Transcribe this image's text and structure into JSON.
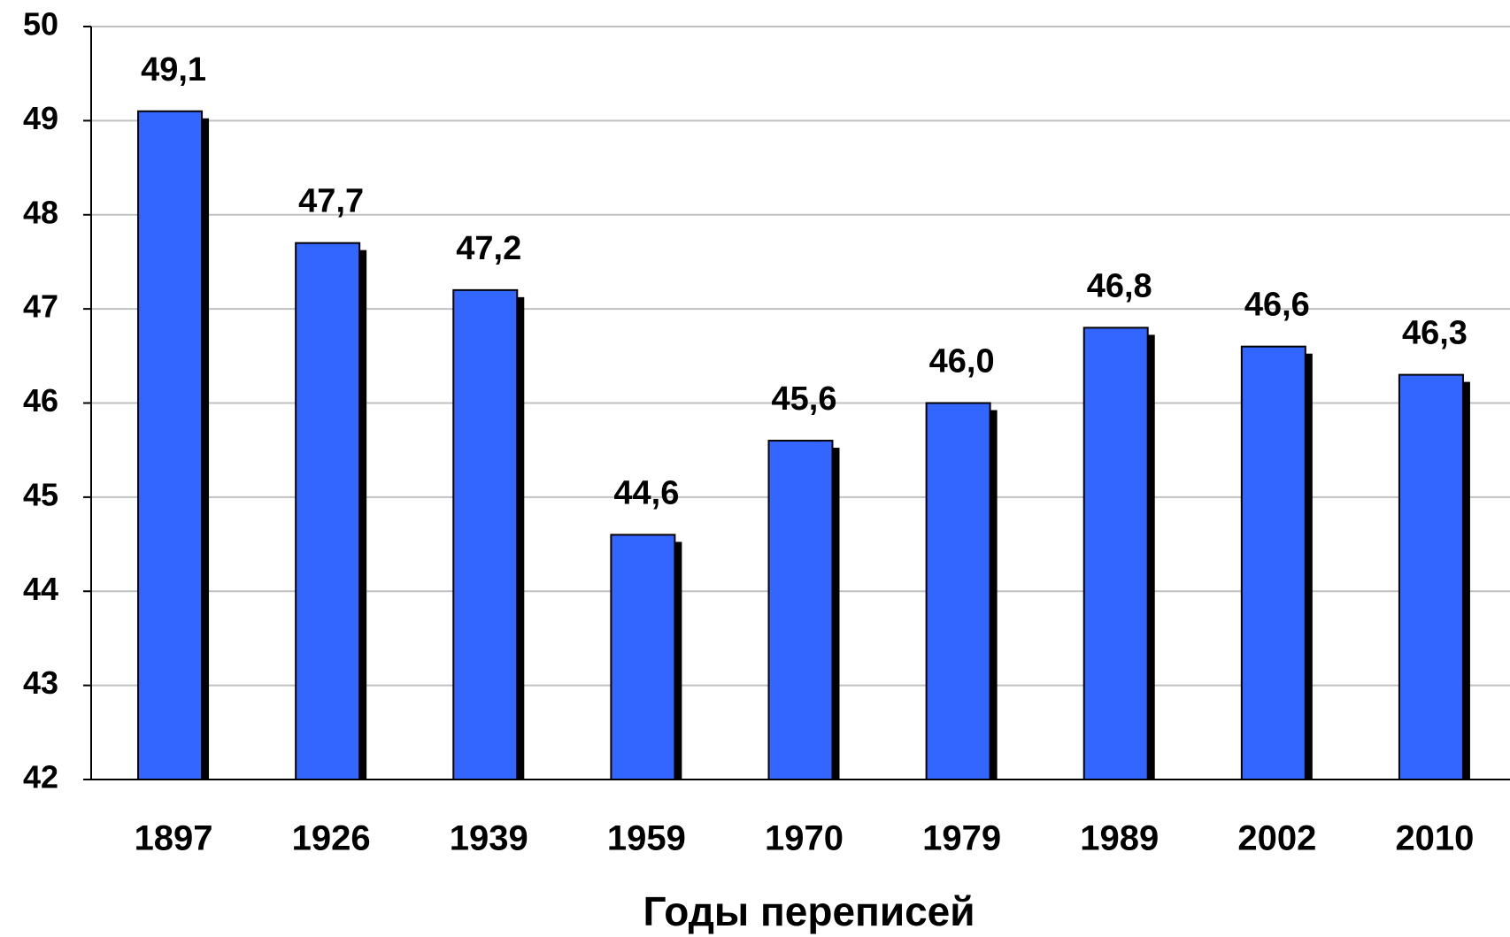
{
  "chart_data": {
    "type": "bar",
    "xlabel": "Годы переписей",
    "categories": [
      "1897",
      "1926",
      "1939",
      "1959",
      "1970",
      "1979",
      "1989",
      "2002",
      "2010"
    ],
    "values": [
      49.1,
      47.7,
      47.2,
      44.6,
      45.6,
      46.0,
      46.8,
      46.6,
      46.3
    ],
    "value_labels": [
      "49,1",
      "47,7",
      "47,2",
      "44,6",
      "45,6",
      "46,0",
      "46,8",
      "46,6",
      "46,3"
    ],
    "color": "#3366ff",
    "ylim": [
      42,
      50
    ],
    "yticks": [
      42,
      43,
      44,
      45,
      46,
      47,
      48,
      49,
      50
    ],
    "grid": true
  }
}
